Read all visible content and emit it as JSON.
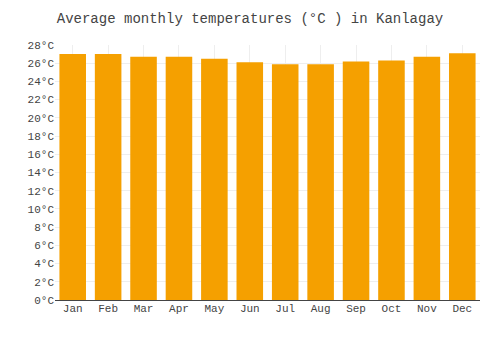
{
  "chart_data": {
    "type": "bar",
    "title": "Average monthly temperatures (°C ) in Kanlagay",
    "categories": [
      "Jan",
      "Feb",
      "Mar",
      "Apr",
      "May",
      "Jun",
      "Jul",
      "Aug",
      "Sep",
      "Oct",
      "Nov",
      "Dec"
    ],
    "values": [
      27.0,
      27.0,
      26.7,
      26.7,
      26.5,
      26.1,
      25.9,
      25.9,
      26.2,
      26.3,
      26.7,
      27.1
    ],
    "color": "#F5A000",
    "ylim": [
      0,
      28
    ],
    "yticks": [
      {
        "value": 0,
        "label": "0°C"
      },
      {
        "value": 2,
        "label": "2°C"
      },
      {
        "value": 4,
        "label": "4°C"
      },
      {
        "value": 6,
        "label": "6°C"
      },
      {
        "value": 8,
        "label": "8°C"
      },
      {
        "value": 10,
        "label": "10°C"
      },
      {
        "value": 12,
        "label": "12°C"
      },
      {
        "value": 14,
        "label": "14°C"
      },
      {
        "value": 16,
        "label": "16°C"
      },
      {
        "value": 18,
        "label": "18°C"
      },
      {
        "value": 20,
        "label": "20°C"
      },
      {
        "value": 22,
        "label": "22°C"
      },
      {
        "value": 24,
        "label": "24°C"
      },
      {
        "value": 26,
        "label": "26°C"
      },
      {
        "value": 28,
        "label": "28°C"
      }
    ],
    "grid": true
  }
}
